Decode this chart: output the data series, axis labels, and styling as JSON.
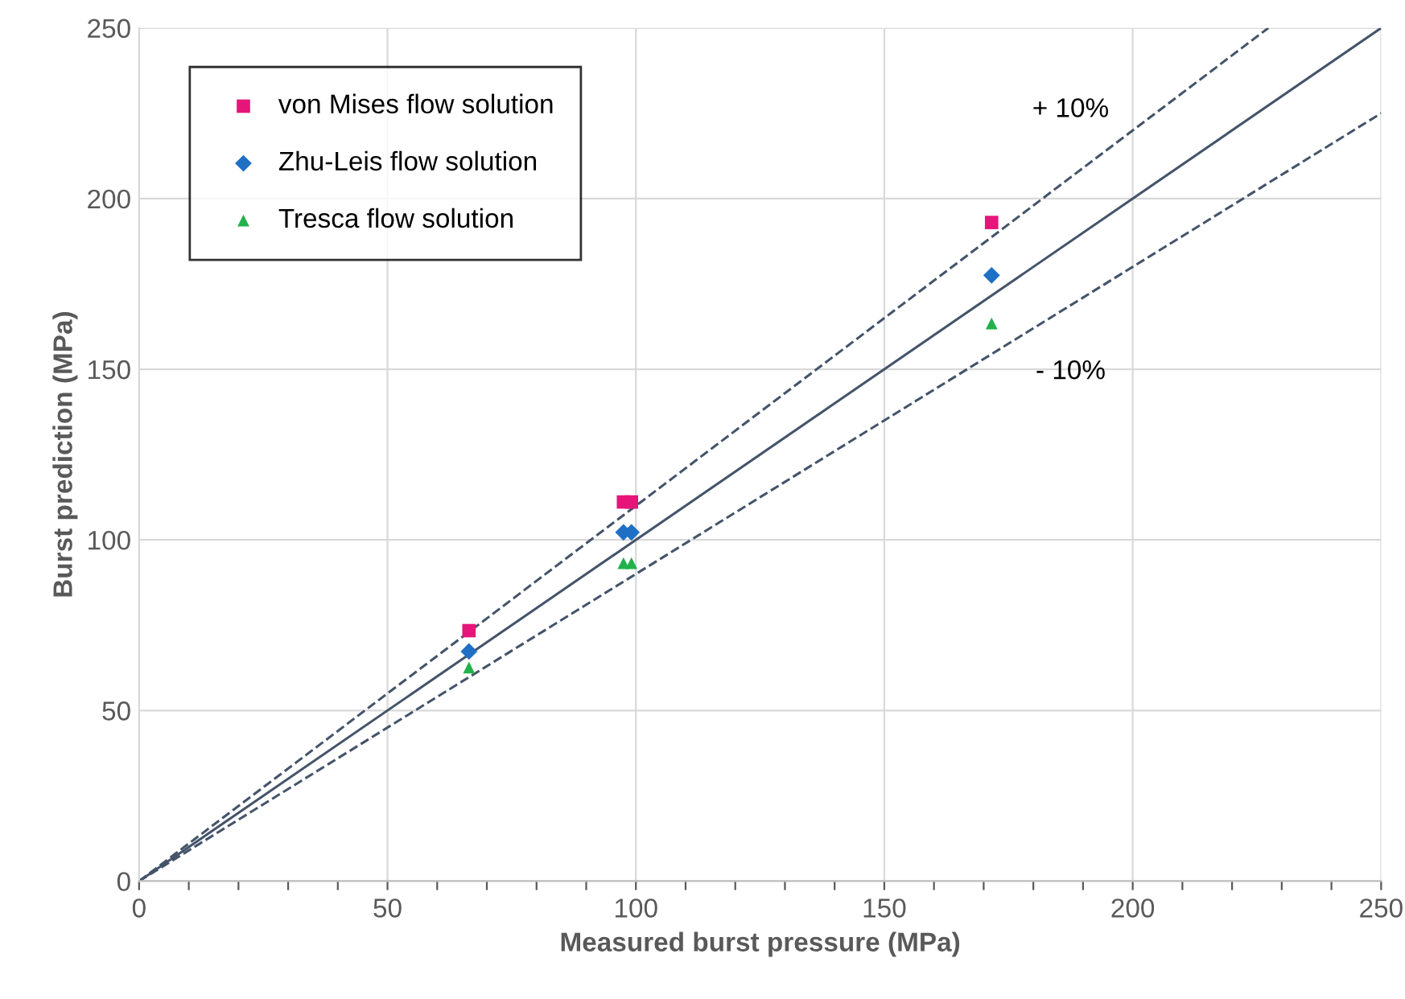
{
  "chart_data": {
    "type": "scatter",
    "xlabel": "Measured burst pressure (MPa)",
    "ylabel": "Burst prediction (MPa)",
    "xlim": [
      0,
      250
    ],
    "ylim": [
      0,
      250
    ],
    "xticks": [
      0,
      {
        "value": 10,
        "label": null
      },
      {
        "value": 20,
        "label": null
      },
      {
        "value": 30,
        "label": null
      },
      {
        "value": 40,
        "label": null
      },
      50,
      {
        "value": 60,
        "label": null
      },
      {
        "value": 70,
        "label": null
      },
      {
        "value": 80,
        "label": null
      },
      {
        "value": 90,
        "label": null
      },
      100,
      {
        "value": 110,
        "label": null
      },
      {
        "value": 120,
        "label": null
      },
      {
        "value": 130,
        "label": null
      },
      {
        "value": 140,
        "label": null
      },
      150,
      {
        "value": 160,
        "label": null
      },
      {
        "value": 170,
        "label": null
      },
      {
        "value": 180,
        "label": null
      },
      {
        "value": 190,
        "label": null
      },
      200,
      {
        "value": 210,
        "label": null
      },
      {
        "value": 220,
        "label": null
      },
      {
        "value": 230,
        "label": null
      },
      {
        "value": 240,
        "label": null
      },
      250
    ],
    "yticks": [
      0,
      50,
      100,
      150,
      200,
      250
    ],
    "grid": true,
    "legend": "top left",
    "series": [
      {
        "name": "von Mises flow solution",
        "color": "#e6157a",
        "marker": "square",
        "x": [
          66.4,
          97.5,
          99.1,
          171.6
        ],
        "values": [
          73.4,
          111.1,
          111.1,
          193
        ]
      },
      {
        "name": "Zhu-Leis flow solution",
        "color": "#1f6fc5",
        "marker": "diamond",
        "x": [
          66.4,
          97.5,
          99.1,
          171.6
        ],
        "values": [
          67.3,
          102.2,
          102.2,
          177.5
        ]
      },
      {
        "name": "Tresca flow solution",
        "color": "#22b14c",
        "marker": "triangle",
        "x": [
          66.4,
          97.5,
          99.1,
          171.6
        ],
        "values": [
          62.6,
          93.2,
          93.2,
          163.4
        ]
      },
      {
        "type": "line",
        "color": "#44546a",
        "line_style": "solid",
        "x": [
          0,
          250
        ],
        "values": [
          0,
          250
        ]
      },
      {
        "type": "line",
        "color": "#44546a",
        "line_style": "dashed",
        "x": [
          0,
          227.3
        ],
        "values": [
          0,
          250
        ]
      },
      {
        "type": "line",
        "color": "#44546a",
        "line_style": "dashed",
        "x": [
          0,
          250
        ],
        "values": [
          0,
          225
        ]
      }
    ],
    "annotations": [
      {
        "text": "+ 10%",
        "x": 187.5,
        "y": 206.3
      },
      {
        "text": "- 10%",
        "x": 187.5,
        "y": 168.8
      }
    ]
  }
}
